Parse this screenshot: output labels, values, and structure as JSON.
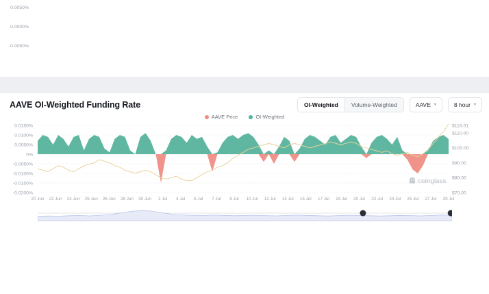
{
  "top_chart": {
    "axis_labels": [
      "0.0050%",
      "0.0000%",
      "-0.0050%"
    ]
  },
  "header": {
    "title": "AAVE OI-Weighted Funding Rate",
    "toggle": {
      "options": [
        "OI-Weighted",
        "Volume-Weighted"
      ],
      "selected": "OI-Weighted"
    },
    "symbol_select": {
      "value": "AAVE"
    },
    "interval_select": {
      "value": "8 hour"
    }
  },
  "legend": [
    {
      "label": "AAVE Price",
      "color": "#ee8c80"
    },
    {
      "label": "OI-Weighted",
      "color": "#52b39e"
    }
  ],
  "watermark": "coinglass",
  "chart_data": {
    "type": "area",
    "title": "AAVE OI-Weighted Funding Rate",
    "left_axis": {
      "label": "funding rate",
      "ticks": [
        "0.0150%",
        "0.0100%",
        "0.0050%",
        "0%",
        "-0.0050%",
        "-0.0100%",
        "-0.0150%",
        "-0.0200%"
      ],
      "tick_values": [
        0.015,
        0.01,
        0.005,
        0,
        -0.005,
        -0.01,
        -0.015,
        -0.02
      ],
      "range": [
        -0.02,
        0.015
      ]
    },
    "right_axis": {
      "label": "AAVE price USD",
      "ticks": [
        "$116.01",
        "$110.00",
        "$100.00",
        "$90.00",
        "$80.00",
        "$70.00"
      ],
      "tick_values": [
        116.01,
        110,
        100,
        90,
        80,
        70
      ],
      "range": [
        70,
        116.01
      ]
    },
    "x_ticks": [
      "20 Jun",
      "22 Jun",
      "24 Jun",
      "25 Jun",
      "26 Jun",
      "28 Jun",
      "30 Jun",
      "2 Jul",
      "4 Jul",
      "5 Jul",
      "7 Jul",
      "9 Jul",
      "10 Jul",
      "12 Jul",
      "14 Jul",
      "15 Jul",
      "17 Jul",
      "19 Jul",
      "20 Jul",
      "22 Jul",
      "24 Jul",
      "25 Jul",
      "27 Jul",
      "29 Jul"
    ],
    "series": [
      {
        "name": "OI-Weighted",
        "type": "area",
        "color_pos": "#5fb7a1",
        "color_neg": "#f0938b",
        "values": [
          0.007,
          0.01,
          0.009,
          0.005,
          0.01,
          0.008,
          0.004,
          0.009,
          0.01,
          0.002,
          0.008,
          0.01,
          0.009,
          0.003,
          0.001,
          0.008,
          0.01,
          0.009,
          0.002,
          0.0,
          0.009,
          0.011,
          0.007,
          0.0,
          -0.015,
          0.002,
          0.008,
          0.01,
          0.009,
          0.006,
          0.01,
          0.008,
          0.009,
          0.004,
          -0.009,
          0.001,
          0.006,
          0.009,
          0.01,
          0.008,
          0.01,
          0.011,
          0.009,
          0.005,
          -0.004,
          0.002,
          -0.005,
          0.004,
          0.009,
          0.007,
          -0.004,
          0.003,
          0.008,
          0.01,
          0.009,
          0.007,
          0.005,
          0.009,
          0.01,
          0.006,
          0.008,
          0.01,
          0.009,
          0.004,
          -0.002,
          0.006,
          0.009,
          0.01,
          0.008,
          0.005,
          0.009,
          0.002,
          -0.003,
          -0.008,
          -0.01,
          -0.006,
          0.002,
          0.007,
          0.009,
          0.01,
          0.008
        ]
      },
      {
        "name": "AAVE Price",
        "type": "line",
        "color": "#e9d39c",
        "values": [
          86,
          85,
          84,
          86,
          88,
          87,
          85,
          84,
          86,
          88,
          89,
          90,
          92,
          91,
          90,
          88,
          87,
          85,
          84,
          83,
          84,
          85,
          84,
          82,
          80,
          79,
          80,
          81,
          79,
          78,
          78,
          80,
          82,
          84,
          85,
          87,
          88,
          90,
          93,
          95,
          97,
          99,
          100,
          101,
          102,
          103,
          102,
          101,
          100,
          102,
          103,
          102,
          101,
          100,
          101,
          102,
          103,
          104,
          103,
          102,
          103,
          104,
          103,
          101,
          100,
          99,
          98,
          97,
          98,
          96,
          95,
          96,
          97,
          95,
          94,
          96,
          99,
          103,
          107,
          111,
          116
        ]
      }
    ],
    "navigator": {
      "values": [
        35,
        38,
        36,
        40,
        42,
        39,
        44,
        50,
        62,
        75,
        82,
        78,
        64,
        52,
        46,
        44,
        42,
        45,
        43,
        40,
        42,
        44,
        41,
        39,
        42,
        45,
        43,
        40,
        38,
        41,
        44,
        42,
        40,
        38,
        40,
        43,
        41,
        39,
        42,
        46,
        44
      ],
      "handles": [
        0.785,
        0.997
      ]
    }
  }
}
